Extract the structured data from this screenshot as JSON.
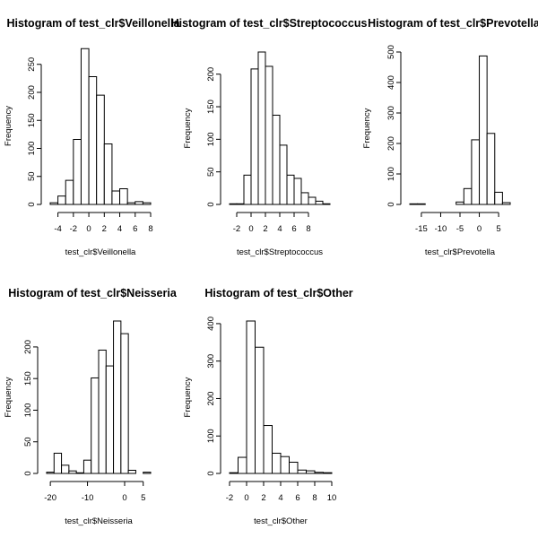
{
  "chart_data": [
    {
      "type": "bar",
      "title": "Histogram of test_clr$Veillonella",
      "xlabel": "test_clr$Veillonella",
      "ylabel": "Frequency",
      "bin_edges": [
        -5,
        -4,
        -3,
        -2,
        -1,
        0,
        1,
        2,
        3,
        4,
        5,
        6,
        7,
        8
      ],
      "values": [
        3,
        15,
        43,
        116,
        278,
        228,
        195,
        108,
        24,
        28,
        3,
        5,
        3
      ],
      "xticks": [
        -4,
        -2,
        0,
        2,
        4,
        6,
        8
      ],
      "yticks": [
        0,
        50,
        100,
        150,
        200,
        250
      ],
      "xlim": [
        -5,
        8
      ],
      "ylim": [
        0,
        280
      ]
    },
    {
      "type": "bar",
      "title": "Histogram of test_clr$Streptococcus",
      "xlabel": "test_clr$Streptococcus",
      "ylabel": "Frequency",
      "bin_edges": [
        -3,
        -2,
        -1,
        0,
        1,
        2,
        3,
        4,
        5,
        6,
        7,
        8,
        9,
        10,
        11
      ],
      "values": [
        1,
        1,
        45,
        208,
        234,
        212,
        137,
        91,
        45,
        40,
        18,
        11,
        5,
        1
      ],
      "xticks": [
        -2,
        0,
        2,
        4,
        6,
        8
      ],
      "yticks": [
        0,
        50,
        100,
        150,
        200
      ],
      "xlim": [
        -3,
        11
      ],
      "ylim": [
        0,
        234
      ]
    },
    {
      "type": "bar",
      "title": "Histogram of test_clr$Prevotella",
      "xlabel": "test_clr$Prevotella",
      "ylabel": "Frequency",
      "bin_edges": [
        -18,
        -16,
        -14,
        -12,
        -10,
        -8,
        -6,
        -4,
        -2,
        0,
        2,
        4,
        6,
        8
      ],
      "values": [
        2,
        2,
        0,
        0,
        0,
        0,
        8,
        52,
        212,
        487,
        233,
        40,
        6
      ],
      "xticks": [
        -15,
        -10,
        -5,
        0,
        5
      ],
      "yticks": [
        0,
        100,
        200,
        300,
        400,
        500
      ],
      "xlim": [
        -18,
        8
      ],
      "ylim": [
        0,
        500
      ]
    },
    {
      "type": "bar",
      "title": "Histogram of test_clr$Neisseria",
      "xlabel": "test_clr$Neisseria",
      "ylabel": "Frequency",
      "bin_edges": [
        -21,
        -19,
        -17,
        -15,
        -13,
        -11,
        -9,
        -7,
        -5,
        -3,
        -1,
        1,
        3,
        5,
        7
      ],
      "values": [
        2,
        32,
        13,
        4,
        1,
        21,
        151,
        195,
        170,
        241,
        221,
        5,
        0,
        2
      ],
      "xticks": [
        -20,
        -10,
        0,
        5
      ],
      "yticks": [
        0,
        50,
        100,
        150,
        200
      ],
      "xlim": [
        -21,
        7
      ],
      "ylim": [
        0,
        241
      ]
    },
    {
      "type": "bar",
      "title": "Histogram of test_clr$Other",
      "xlabel": "test_clr$Other",
      "ylabel": "Frequency",
      "bin_edges": [
        -2,
        -1,
        0,
        1,
        2,
        3,
        4,
        5,
        6,
        7,
        8,
        9,
        10
      ],
      "values": [
        2,
        43,
        407,
        337,
        128,
        54,
        45,
        30,
        9,
        7,
        3,
        2
      ],
      "xticks": [
        -2,
        0,
        2,
        4,
        6,
        8,
        10
      ],
      "yticks": [
        0,
        100,
        200,
        300,
        400
      ],
      "xlim": [
        -2,
        10
      ],
      "ylim": [
        0,
        407
      ]
    }
  ]
}
